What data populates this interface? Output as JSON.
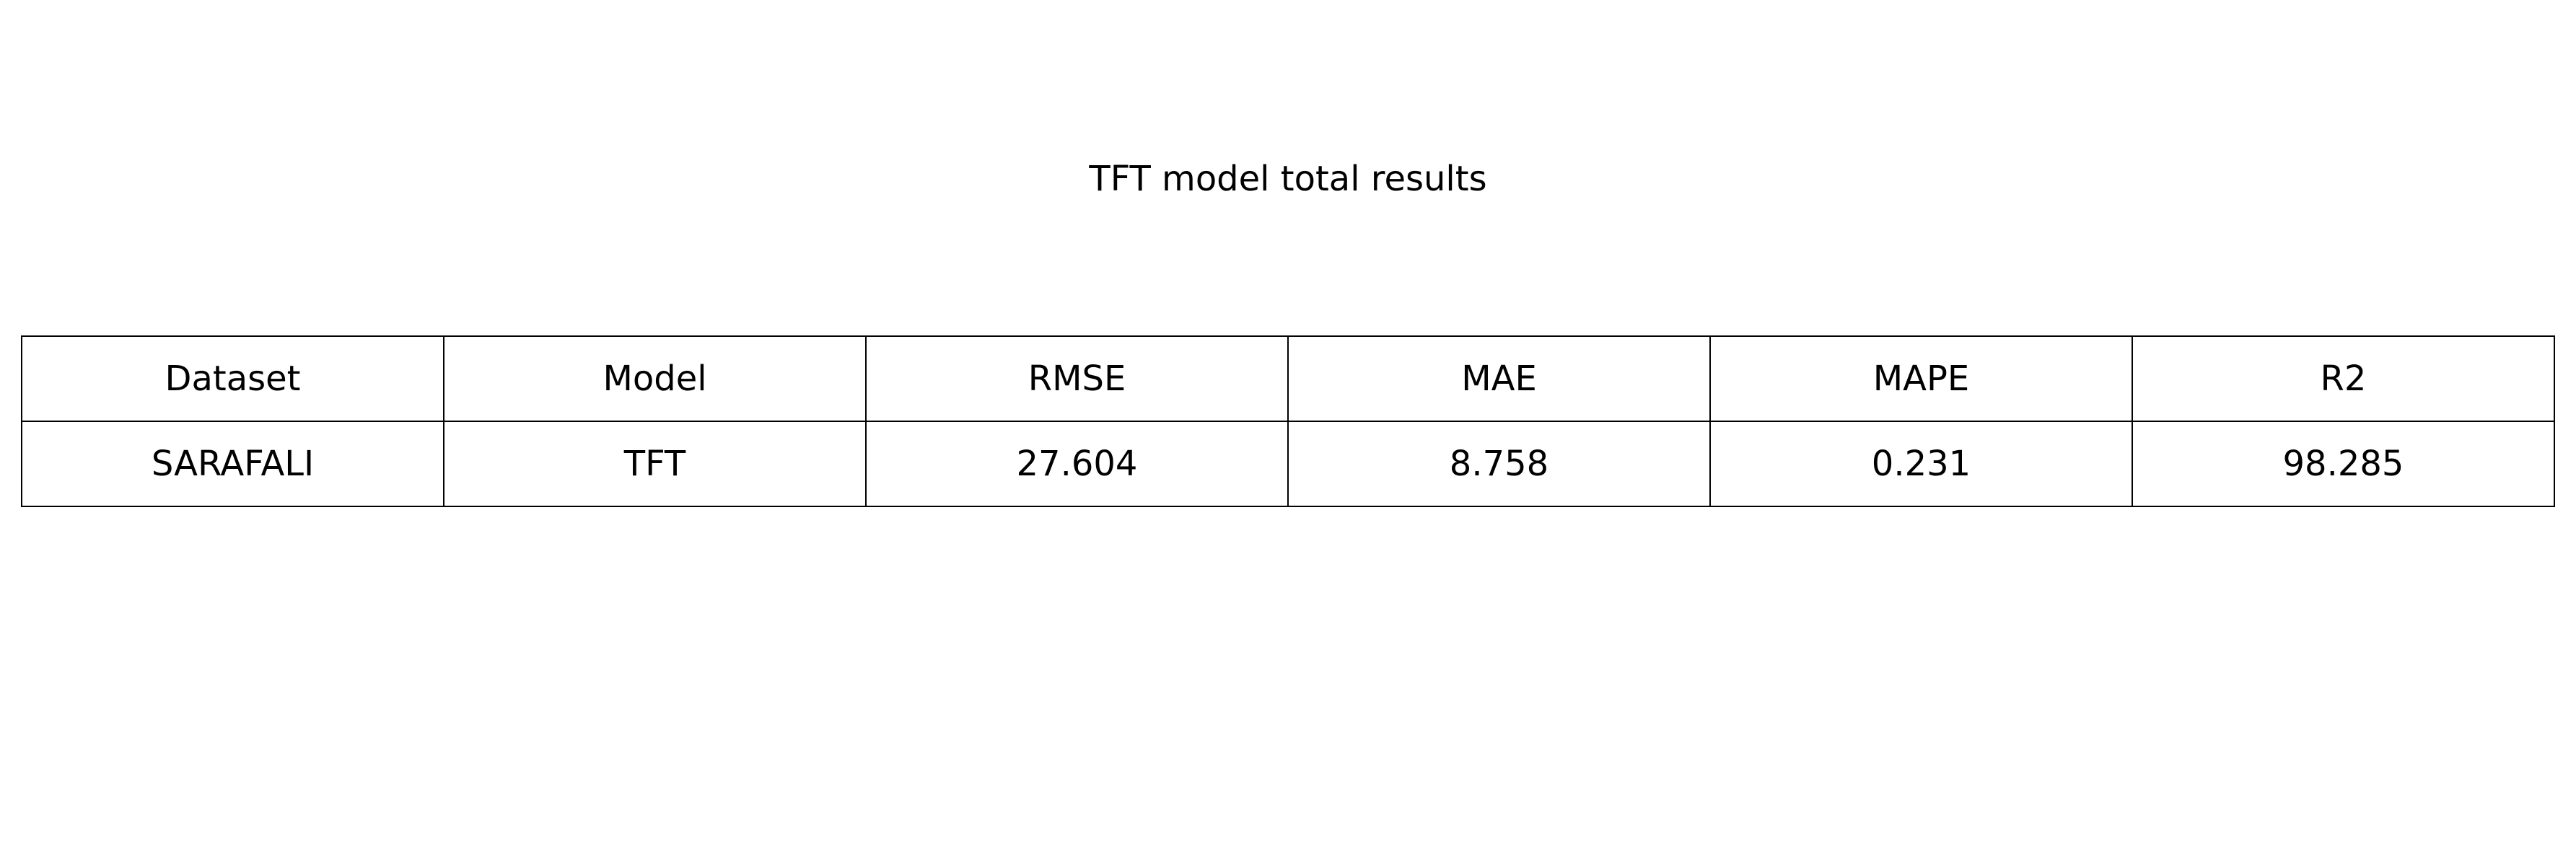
{
  "chart_data": {
    "type": "table",
    "title": "TFT model total results",
    "columns": [
      "Dataset",
      "Model",
      "RMSE",
      "MAE",
      "MAPE",
      "R2"
    ],
    "rows": [
      [
        "SARAFALI",
        "TFT",
        "27.604",
        "8.758",
        "0.231",
        "98.285"
      ]
    ]
  }
}
